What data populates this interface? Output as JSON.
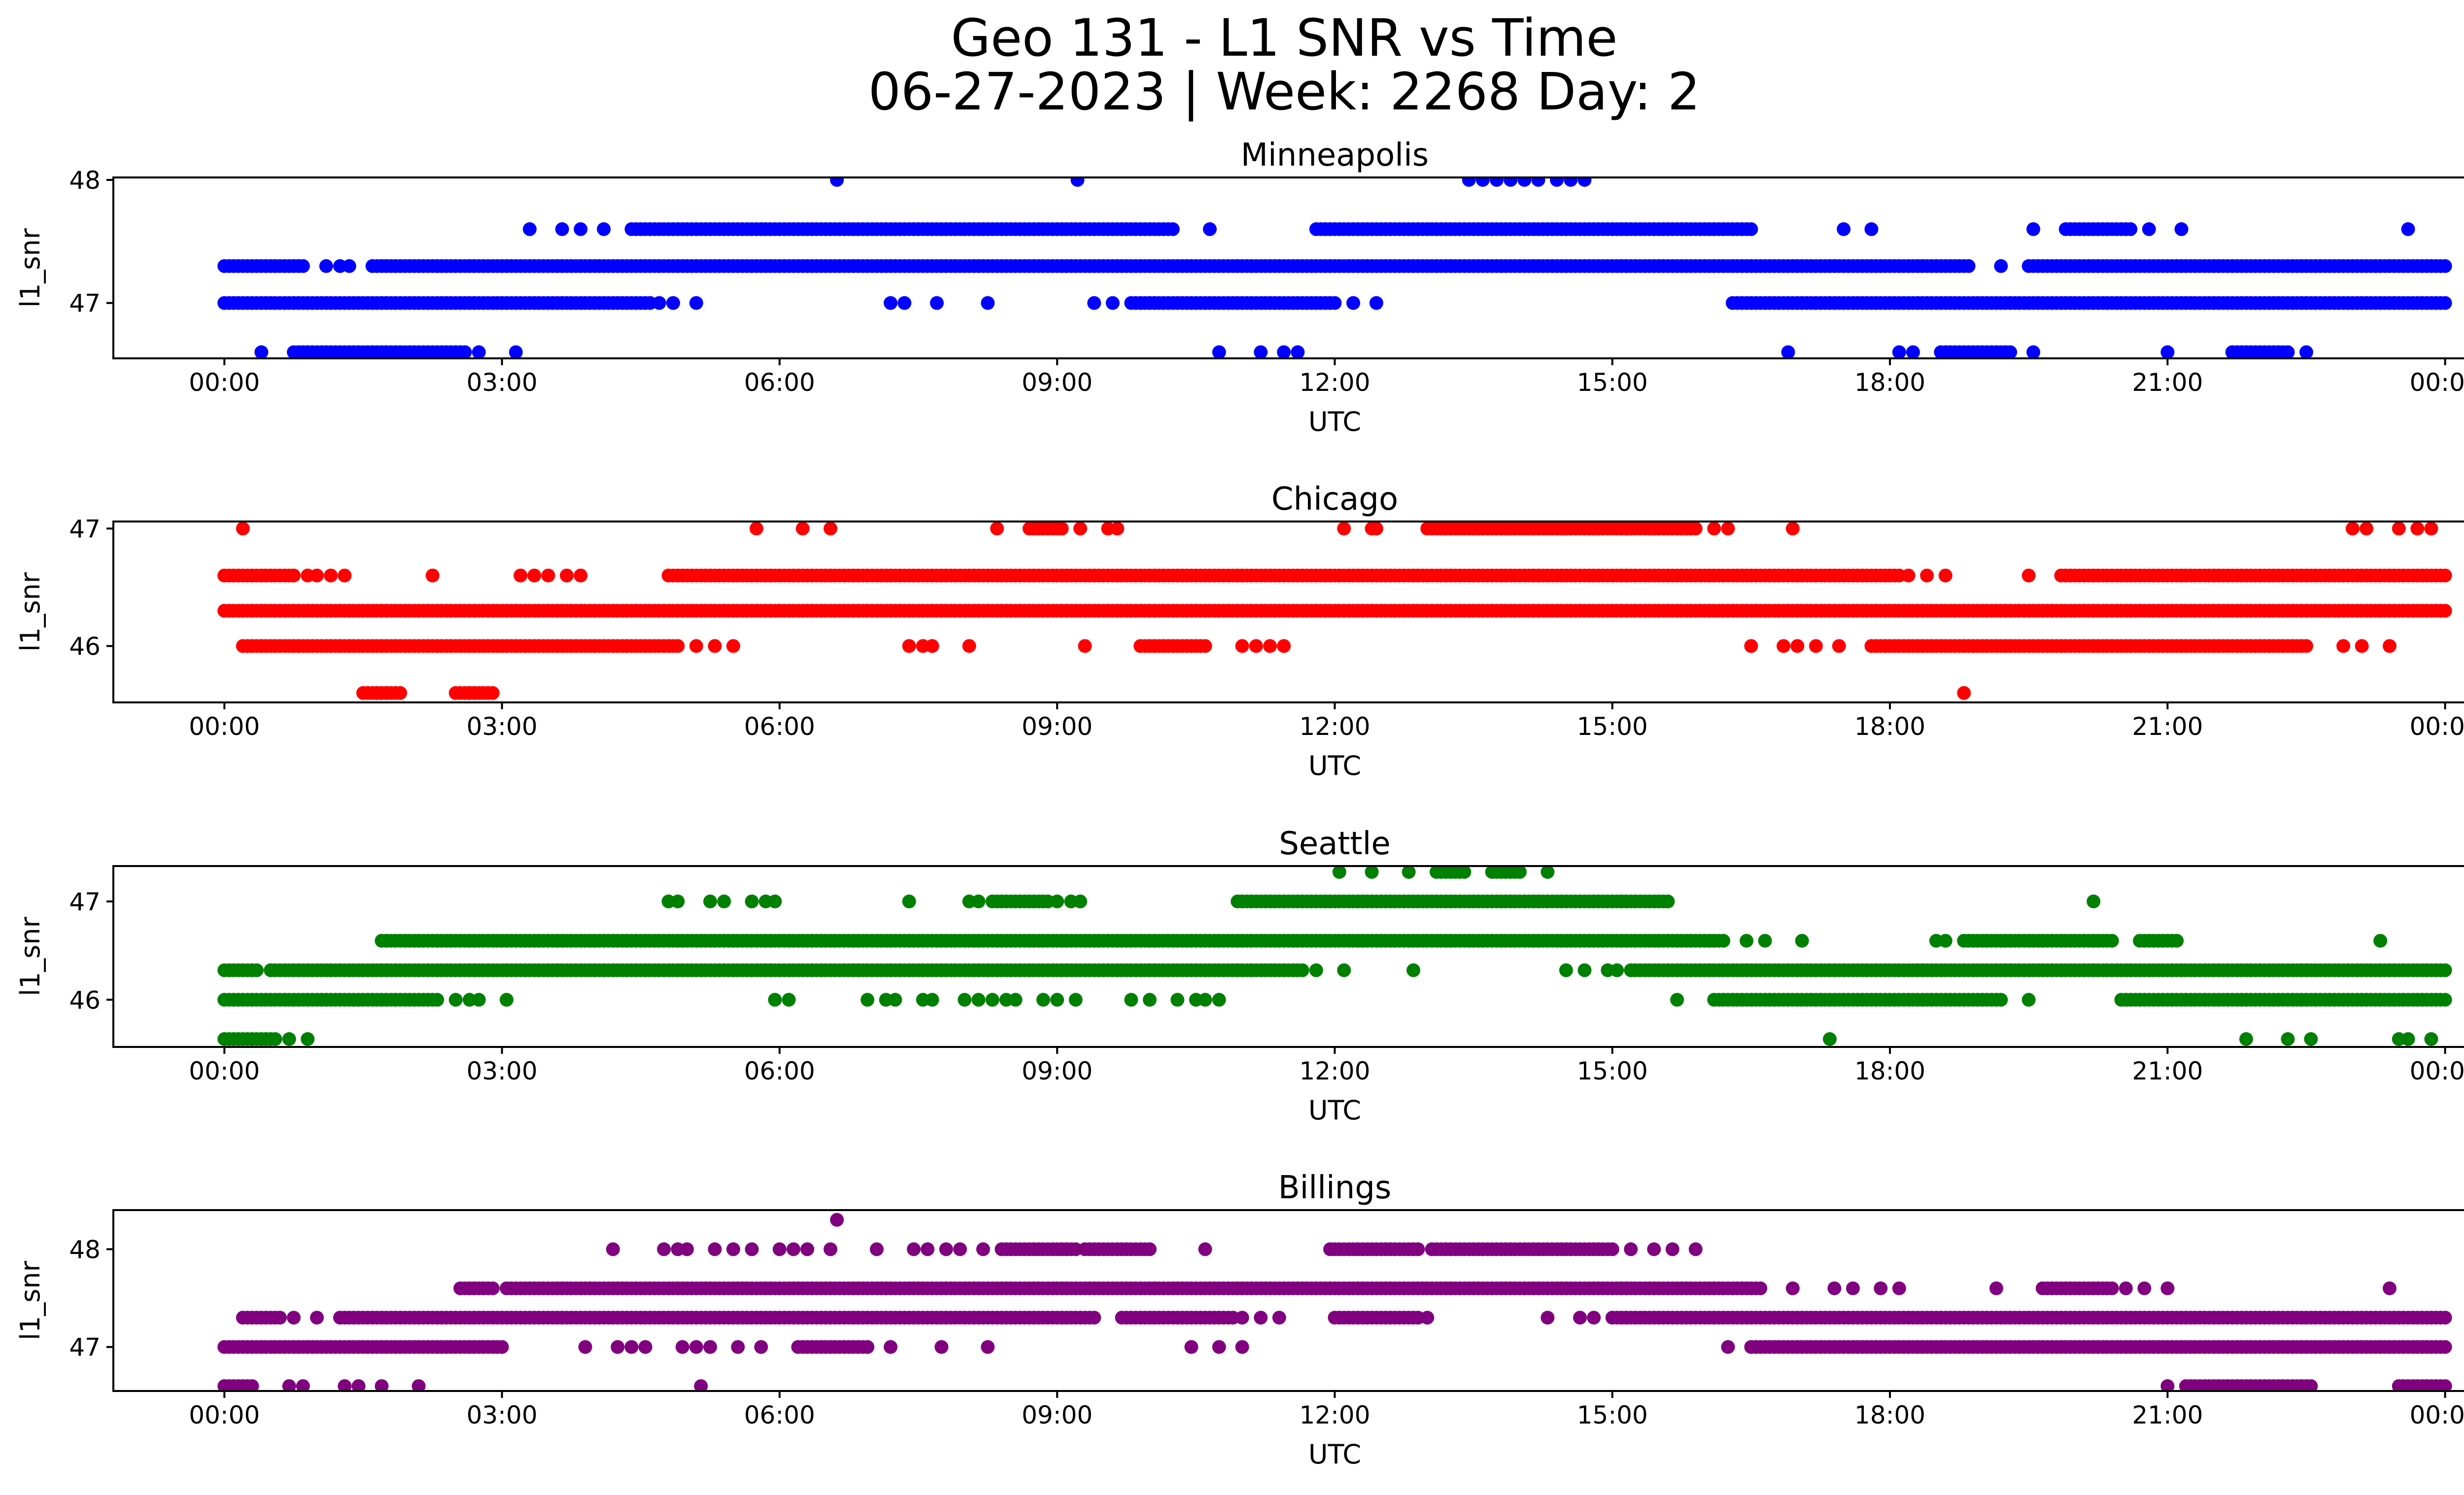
{
  "figure": {
    "title_line1": "Geo 131 - L1 SNR vs Time",
    "title_line2": "06-27-2023 | Week: 2268 Day: 2"
  },
  "chart_data": [
    {
      "type": "scatter",
      "title": "Minneapolis",
      "xlabel": "UTC",
      "ylabel": "l1_snr",
      "color": "#0000ff",
      "x_unit": "hours UTC",
      "xlim": [
        -1.2,
        25.2
      ],
      "ylim": [
        46.55,
        48.02
      ],
      "x_ticks": [
        0,
        3,
        6,
        9,
        12,
        15,
        18,
        21,
        24
      ],
      "x_tick_labels": [
        "00:00",
        "03:00",
        "06:00",
        "09:00",
        "12:00",
        "15:00",
        "18:00",
        "21:00",
        "00:00"
      ],
      "y_ticks": [
        47,
        48
      ],
      "y_tick_labels": [
        "47",
        "48"
      ],
      "series": [
        {
          "y": 48.0,
          "ranges": [],
          "points": [
            6.62,
            9.22,
            13.45,
            13.6,
            13.75,
            13.9,
            14.05,
            14.2,
            14.4,
            14.55,
            14.7
          ]
        },
        {
          "y": 47.6,
          "ranges": [
            [
              4.4,
              10.25
            ],
            [
              11.8,
              16.5
            ],
            [
              19.9,
              20.6
            ]
          ],
          "points": [
            3.3,
            3.65,
            3.85,
            4.1,
            10.65,
            17.5,
            17.8,
            19.55,
            20.8,
            21.15,
            23.6
          ]
        },
        {
          "y": 47.3,
          "ranges": [
            [
              0.0,
              0.85
            ],
            [
              1.6,
              18.85
            ],
            [
              19.5,
              24.0
            ]
          ],
          "points": [
            1.1,
            1.25,
            1.35,
            19.2
          ]
        },
        {
          "y": 47.0,
          "ranges": [
            [
              0.0,
              4.6
            ],
            [
              9.8,
              12.0
            ],
            [
              16.3,
              24.0
            ]
          ],
          "points": [
            4.7,
            4.85,
            5.1,
            7.2,
            7.35,
            7.7,
            8.25,
            9.4,
            9.6,
            12.2,
            12.45
          ]
        },
        {
          "y": 46.6,
          "ranges": [
            [
              0.75,
              2.6
            ],
            [
              18.55,
              19.3
            ],
            [
              21.7,
              22.3
            ]
          ],
          "points": [
            0.4,
            2.75,
            3.15,
            10.75,
            11.2,
            11.45,
            11.6,
            16.9,
            18.1,
            18.25,
            19.55,
            21.0,
            22.5
          ]
        }
      ]
    },
    {
      "type": "scatter",
      "title": "Chicago",
      "xlabel": "UTC",
      "ylabel": "l1_snr",
      "color": "#ff0000",
      "x_unit": "hours UTC",
      "xlim": [
        -1.2,
        25.2
      ],
      "ylim": [
        45.52,
        47.06
      ],
      "x_ticks": [
        0,
        3,
        6,
        9,
        12,
        15,
        18,
        21,
        24
      ],
      "x_tick_labels": [
        "00:00",
        "03:00",
        "06:00",
        "09:00",
        "12:00",
        "15:00",
        "18:00",
        "21:00",
        "00:00"
      ],
      "y_ticks": [
        46,
        47
      ],
      "y_tick_labels": [
        "46",
        "47"
      ],
      "series": [
        {
          "y": 47.0,
          "ranges": [
            [
              13.0,
              15.9
            ],
            [
              8.7,
              9.05
            ]
          ],
          "points": [
            0.2,
            5.75,
            6.25,
            6.55,
            8.35,
            9.25,
            9.55,
            9.65,
            12.1,
            12.4,
            12.45,
            16.1,
            16.25,
            16.95,
            23.0,
            23.15,
            23.5,
            23.7,
            23.85
          ]
        },
        {
          "y": 46.6,
          "ranges": [
            [
              0.0,
              0.75
            ],
            [
              4.8,
              18.1
            ],
            [
              19.85,
              24.0
            ]
          ],
          "points": [
            0.9,
            1.0,
            1.15,
            1.3,
            2.25,
            3.2,
            3.35,
            3.5,
            3.7,
            3.85,
            18.2,
            18.4,
            18.6,
            19.5
          ]
        },
        {
          "y": 46.3,
          "ranges": [
            [
              0.0,
              24.0
            ]
          ],
          "points": []
        },
        {
          "y": 46.0,
          "ranges": [
            [
              0.2,
              4.9
            ],
            [
              17.8,
              22.5
            ],
            [
              9.9,
              10.6
            ]
          ],
          "points": [
            5.1,
            5.3,
            5.5,
            7.4,
            7.55,
            7.65,
            8.05,
            9.3,
            11.0,
            11.15,
            11.3,
            11.45,
            16.5,
            16.85,
            17.0,
            17.2,
            17.45,
            22.9,
            23.1,
            23.4
          ]
        },
        {
          "y": 45.6,
          "ranges": [
            [
              1.5,
              1.9
            ],
            [
              2.5,
              2.9
            ]
          ],
          "points": [
            1.65,
            18.8
          ]
        }
      ]
    },
    {
      "type": "scatter",
      "title": "Seattle",
      "xlabel": "UTC",
      "ylabel": "l1_snr",
      "color": "#008000",
      "x_unit": "hours UTC",
      "xlim": [
        -1.2,
        25.2
      ],
      "ylim": [
        45.52,
        47.36
      ],
      "x_ticks": [
        0,
        3,
        6,
        9,
        12,
        15,
        18,
        21,
        24
      ],
      "x_tick_labels": [
        "00:00",
        "03:00",
        "06:00",
        "09:00",
        "12:00",
        "15:00",
        "18:00",
        "21:00",
        "00:00"
      ],
      "y_ticks": [
        46,
        47
      ],
      "y_tick_labels": [
        "46",
        "47"
      ],
      "series": [
        {
          "y": 47.3,
          "ranges": [
            [
              13.1,
              13.4
            ],
            [
              13.7,
              14.0
            ]
          ],
          "points": [
            12.05,
            12.4,
            12.8,
            14.3
          ]
        },
        {
          "y": 47.0,
          "ranges": [
            [
              10.95,
              15.6
            ],
            [
              8.3,
              8.9
            ]
          ],
          "points": [
            4.8,
            4.9,
            5.25,
            5.4,
            5.7,
            5.85,
            5.95,
            7.4,
            8.05,
            8.15,
            9.0,
            9.15,
            9.25,
            20.2
          ]
        },
        {
          "y": 46.6,
          "ranges": [
            [
              1.7,
              16.2
            ],
            [
              18.8,
              20.4
            ],
            [
              20.7,
              21.1
            ]
          ],
          "points": [
            16.45,
            16.65,
            17.05,
            18.5,
            18.6,
            23.3
          ]
        },
        {
          "y": 46.3,
          "ranges": [
            [
              0.0,
              0.35
            ],
            [
              0.5,
              11.65
            ],
            [
              15.2,
              24.0
            ]
          ],
          "points": [
            11.8,
            12.1,
            12.85,
            14.5,
            14.7,
            14.95,
            15.05
          ]
        },
        {
          "y": 46.0,
          "ranges": [
            [
              0.0,
              2.3
            ],
            [
              16.1,
              19.2
            ],
            [
              20.5,
              24.0
            ]
          ],
          "points": [
            2.5,
            2.65,
            2.75,
            3.05,
            5.95,
            6.1,
            6.95,
            7.15,
            7.25,
            7.55,
            7.65,
            8.0,
            8.15,
            8.3,
            8.45,
            8.55,
            8.85,
            9.0,
            9.2,
            9.8,
            10.0,
            10.3,
            10.5,
            10.6,
            10.75,
            15.7,
            19.5
          ]
        },
        {
          "y": 45.6,
          "ranges": [
            [
              0.0,
              0.55
            ]
          ],
          "points": [
            0.7,
            0.9,
            17.35,
            21.85,
            22.3,
            22.55,
            23.5,
            23.6,
            23.85
          ]
        }
      ]
    },
    {
      "type": "scatter",
      "title": "Billings",
      "xlabel": "UTC",
      "ylabel": "l1_snr",
      "color": "#800080",
      "x_unit": "hours UTC",
      "xlim": [
        -1.2,
        25.2
      ],
      "ylim": [
        46.55,
        48.4
      ],
      "x_ticks": [
        0,
        3,
        6,
        9,
        12,
        15,
        18,
        21,
        24
      ],
      "x_tick_labels": [
        "00:00",
        "03:00",
        "06:00",
        "09:00",
        "12:00",
        "15:00",
        "18:00",
        "21:00",
        "00:00"
      ],
      "y_ticks": [
        47,
        48
      ],
      "y_tick_labels": [
        "47",
        "48"
      ],
      "series": [
        {
          "y": 48.3,
          "ranges": [],
          "points": [
            6.62
          ]
        },
        {
          "y": 48.0,
          "ranges": [
            [
              11.95,
              12.9
            ],
            [
              13.05,
              15.0
            ],
            [
              8.4,
              9.2
            ],
            [
              9.3,
              10.0
            ]
          ],
          "points": [
            4.2,
            4.75,
            4.9,
            5.0,
            5.3,
            5.5,
            5.7,
            6.0,
            6.15,
            6.3,
            6.55,
            7.05,
            7.45,
            7.6,
            7.8,
            7.95,
            8.2,
            10.6,
            15.2,
            15.45,
            15.65,
            15.9
          ]
        },
        {
          "y": 47.6,
          "ranges": [
            [
              2.55,
              2.9
            ],
            [
              3.05,
              16.6
            ],
            [
              19.65,
              20.4
            ]
          ],
          "points": [
            16.95,
            17.4,
            17.6,
            17.9,
            18.1,
            19.15,
            20.55,
            20.75,
            21.0,
            23.4
          ]
        },
        {
          "y": 47.3,
          "ranges": [
            [
              0.2,
              0.6
            ],
            [
              1.25,
              9.4
            ],
            [
              9.7,
              10.9
            ],
            [
              12.0,
              12.9
            ],
            [
              15.0,
              24.0
            ]
          ],
          "points": [
            0.75,
            1.0,
            11.0,
            11.2,
            11.4,
            13.0,
            14.3,
            14.65,
            14.8
          ]
        },
        {
          "y": 47.0,
          "ranges": [
            [
              0.0,
              3.0
            ],
            [
              16.5,
              24.0
            ],
            [
              6.2,
              6.95
            ]
          ],
          "points": [
            3.9,
            4.25,
            4.4,
            4.55,
            4.95,
            5.1,
            5.25,
            5.55,
            5.8,
            7.2,
            7.75,
            8.25,
            10.45,
            10.75,
            11.0,
            16.25
          ]
        },
        {
          "y": 46.6,
          "ranges": [
            [
              0.0,
              0.3
            ],
            [
              21.2,
              22.55
            ],
            [
              23.5,
              24.0
            ]
          ],
          "points": [
            0.7,
            0.85,
            1.3,
            1.45,
            1.7,
            2.1,
            5.15,
            21.0
          ]
        }
      ]
    }
  ]
}
